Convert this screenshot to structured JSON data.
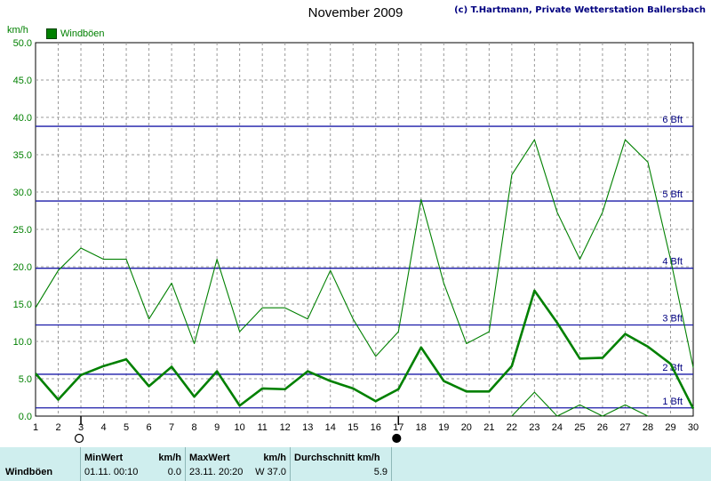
{
  "header": {
    "title": "November 2009",
    "credit": "(c) T.Hartmann, Private Wetterstation Ballersbach"
  },
  "chart_data": {
    "type": "line",
    "ylabel": "km/h",
    "ylim": [
      0,
      50
    ],
    "yticks": [
      "0.0",
      "5.0",
      "10.0",
      "15.0",
      "20.0",
      "25.0",
      "30.0",
      "35.0",
      "40.0",
      "45.0",
      "50.0"
    ],
    "xlim": [
      1,
      30
    ],
    "categories": [
      "1",
      "2",
      "3",
      "4",
      "5",
      "6",
      "7",
      "8",
      "9",
      "10",
      "11",
      "12",
      "13",
      "14",
      "15",
      "16",
      "17",
      "18",
      "19",
      "20",
      "21",
      "22",
      "23",
      "24",
      "25",
      "26",
      "27",
      "28",
      "29",
      "30"
    ],
    "grid": true,
    "legend": "top-left",
    "series": [
      {
        "name": "Windböen",
        "role": "max",
        "color": "#008000",
        "values": [
          14.5,
          19.5,
          22.5,
          21.0,
          21.0,
          13.0,
          17.8,
          9.7,
          21.0,
          11.3,
          14.5,
          14.5,
          13.0,
          19.5,
          13.0,
          8.0,
          11.3,
          29.0,
          17.8,
          9.7,
          11.3,
          32.3,
          37.0,
          27.3,
          21.0,
          27.3,
          37.0,
          34.0,
          21.0,
          6.5
        ]
      },
      {
        "role": "average",
        "color": "#008000",
        "values": [
          5.7,
          2.2,
          5.5,
          6.7,
          7.6,
          4.0,
          6.6,
          2.6,
          6.0,
          1.4,
          3.7,
          3.6,
          6.0,
          4.7,
          3.7,
          2.0,
          3.6,
          9.2,
          4.7,
          3.3,
          3.3,
          6.7,
          16.8,
          12.5,
          7.7,
          7.8,
          11.0,
          9.3,
          7.0,
          1.0
        ]
      },
      {
        "role": "min",
        "color": "#008000",
        "values": [
          null,
          null,
          null,
          null,
          null,
          null,
          null,
          null,
          null,
          null,
          null,
          null,
          null,
          null,
          null,
          null,
          null,
          null,
          null,
          null,
          null,
          0.0,
          3.2,
          0.0,
          1.5,
          0.0,
          1.5,
          0.0,
          null,
          null
        ]
      }
    ],
    "reference_lines": [
      {
        "label": "1 Bft",
        "value": 1.1
      },
      {
        "label": "2 Bft",
        "value": 5.6
      },
      {
        "label": "3 Bft",
        "value": 12.2
      },
      {
        "label": "4 Bft",
        "value": 19.8
      },
      {
        "label": "5 Bft",
        "value": 28.8
      },
      {
        "label": "6 Bft",
        "value": 38.8
      }
    ],
    "markers": [
      {
        "type": "new-moon",
        "day": 3
      },
      {
        "type": "full-moon",
        "day": 17
      }
    ]
  },
  "summary": {
    "row_label": "Windböen",
    "min": {
      "label": "MinWert",
      "unit": "km/h",
      "date": "01.11.",
      "time": "00:10",
      "value": "0.0"
    },
    "max": {
      "label": "MaxWert",
      "unit": "km/h",
      "date": "23.11.",
      "time": "20:20",
      "value": "W 37.0"
    },
    "avg": {
      "label": "Durchschnitt km/h",
      "value": "5.9"
    }
  }
}
